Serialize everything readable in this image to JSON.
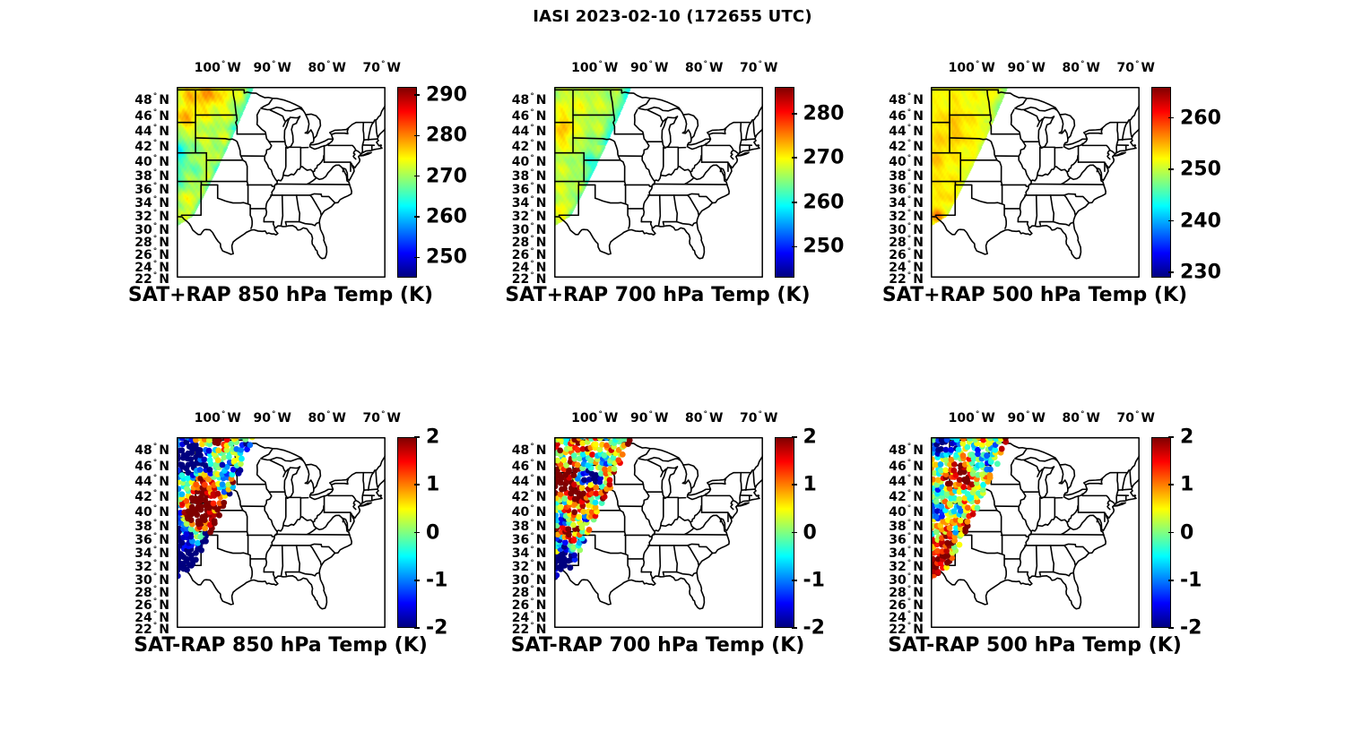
{
  "chart_data": {
    "title": "IASI 2023-02-10 (172655 UTC)",
    "type": "heatmap",
    "subtype": "multi-panel-geographic-swath",
    "instrument": "IASI",
    "colormap": "jet",
    "projection": "mercator",
    "grid": false,
    "lon_range": [
      -107.5,
      -69.3
    ],
    "lat_range": [
      22,
      49.35
    ],
    "lon_ticks": {
      "values": [
        -100,
        -90,
        -80,
        -70
      ],
      "labels": [
        "100° W",
        "90° W",
        "80° W",
        "70° W"
      ]
    },
    "lat_ticks": {
      "values": [
        48,
        46,
        44,
        42,
        40,
        38,
        36,
        34,
        32,
        30,
        28,
        26,
        24,
        22
      ],
      "labels": [
        "48° N",
        "46° N",
        "44° N",
        "42° N",
        "40° N",
        "38° N",
        "36° N",
        "34° N",
        "32° N",
        "30° N",
        "28° N",
        "26° N",
        "24° N",
        "22° N"
      ]
    },
    "swath": {
      "description": "diagonal satellite overpass swath over the U.S. high plains, left edge clipped at map border",
      "bottom_edge": {
        "lat_ref": 30.2,
        "dlat_dlon": 0.53,
        "lon_ref": -107.6
      },
      "right_edge": {
        "lat_ref": 31.9,
        "lon_ref": -104.4,
        "dlon_dlat": 0.634
      }
    },
    "panels": [
      {
        "id": "sat-plus-rap-850",
        "row": 0,
        "col": 0,
        "render": "heatmap",
        "title": "SAT+RAP 850 hPa Temp (K)",
        "pressure_hPa": 850,
        "units": "K",
        "colorbar": {
          "min": 245,
          "max": 292,
          "ticks": [
            250,
            260,
            270,
            280,
            290
          ]
        },
        "field": {
          "base": 271,
          "noise_amp": 3.0,
          "seed": 1,
          "features": [
            [
              48.4,
              -102.3,
              7,
              1.5,
              3.0
            ],
            [
              45.3,
              -106.2,
              5.5,
              1.5,
              1.8
            ],
            [
              41.3,
              -106.9,
              -7.5,
              1.6,
              1.5
            ],
            [
              37.2,
              -107.0,
              -4,
              1.2,
              1.3
            ],
            [
              34.2,
              -105.3,
              1.5,
              1.5,
              2.0
            ],
            [
              38.5,
              -103.9,
              -2,
              1.1,
              1.1
            ]
          ],
          "edge_bands": [
            [
              44,
              49.5,
              1.8,
              -6
            ],
            [
              30,
              44,
              0.9,
              -4.5
            ]
          ]
        }
      },
      {
        "id": "sat-plus-rap-700",
        "row": 0,
        "col": 1,
        "render": "heatmap",
        "title": "SAT+RAP 700 hPa Temp (K)",
        "pressure_hPa": 700,
        "units": "K",
        "colorbar": {
          "min": 243,
          "max": 286,
          "ticks": [
            250,
            260,
            270,
            280
          ]
        },
        "field": {
          "base": 266.5,
          "noise_amp": 2.2,
          "seed": 2,
          "features": [
            [
              44.0,
              -106.0,
              5.5,
              1.7,
              1.8
            ],
            [
              47.6,
              -103.0,
              1.8,
              1.6,
              3.0
            ],
            [
              39.6,
              -100.9,
              -4.5,
              1.5,
              1.2
            ],
            [
              32.4,
              -106.4,
              3,
              1.2,
              1.5
            ],
            [
              36.9,
              -106.8,
              1.5,
              1.5,
              1.3
            ]
          ],
          "edge_bands": [
            [
              42,
              49.5,
              2.2,
              -6
            ],
            [
              30,
              42,
              1.0,
              -3.5
            ]
          ]
        }
      },
      {
        "id": "sat-plus-rap-500",
        "row": 0,
        "col": 2,
        "render": "heatmap",
        "title": "SAT+RAP 500 hPa Temp (K)",
        "pressure_hPa": 500,
        "units": "K",
        "colorbar": {
          "min": 229,
          "max": 266,
          "ticks": [
            230,
            240,
            250,
            260
          ]
        },
        "field": {
          "base": 251.5,
          "noise_amp": 1.3,
          "seed": 3,
          "features": [
            [
              44.2,
              -103.4,
              2.5,
              2.4,
              2.4
            ],
            [
              40.1,
              -106.6,
              2,
              1.8,
              1.4
            ],
            [
              31.9,
              -106.4,
              5,
              0.7,
              0.9
            ],
            [
              35.2,
              -104.6,
              1.5,
              2,
              2
            ]
          ],
          "edge_bands": [
            [
              45,
              49.5,
              2.0,
              -3.5
            ],
            [
              30,
              45,
              0.8,
              -1.5
            ]
          ]
        }
      },
      {
        "id": "sat-minus-rap-850",
        "row": 1,
        "col": 0,
        "render": "scatter",
        "title": "SAT-RAP 850 hPa Temp (K)",
        "pressure_hPa": 850,
        "units": "K",
        "colorbar": {
          "min": -2,
          "max": 2,
          "ticks": [
            -2,
            -1,
            0,
            1,
            2
          ]
        },
        "dot_radius": 3.4,
        "dot_jitter": 0.8,
        "field": {
          "base": -0.9,
          "noise_amp": 1.5,
          "seed": 4,
          "features": [
            [
              41.4,
              -102.9,
              4.5,
              2.3,
              2.1
            ],
            [
              39.2,
              -104.9,
              3.5,
              1.1,
              1.4
            ],
            [
              49.1,
              -100.8,
              3.0,
              0.7,
              2.6
            ],
            [
              46.9,
              -105.2,
              -3.5,
              1.5,
              2.0
            ],
            [
              32.4,
              -106.4,
              -3.5,
              1.9,
              2.3
            ],
            [
              34.7,
              -105.8,
              2.5,
              0.6,
              0.7
            ],
            [
              38.3,
              -107.2,
              -3.0,
              2.0,
              1.0
            ],
            [
              47.8,
              -99.0,
              1.5,
              0.9,
              1.2
            ]
          ],
          "edge_bands": [
            [
              36.9,
              44.6,
              1.3,
              4
            ],
            [
              30,
              36.8,
              1.5,
              -4
            ]
          ]
        }
      },
      {
        "id": "sat-minus-rap-700",
        "row": 1,
        "col": 1,
        "render": "scatter",
        "title": "SAT-RAP 700 hPa Temp (K)",
        "pressure_hPa": 700,
        "units": "K",
        "colorbar": {
          "min": -2,
          "max": 2,
          "ticks": [
            -2,
            -1,
            0,
            1,
            2
          ]
        },
        "dot_radius": 3.4,
        "dot_jitter": 0.9,
        "field": {
          "base": 0.2,
          "noise_amp": 1.7,
          "seed": 5,
          "features": [
            [
              44.8,
              -100.9,
              -2.8,
              0.9,
              1.5
            ],
            [
              43.8,
              -105.4,
              3.0,
              1.5,
              1.7
            ],
            [
              42.0,
              -102.6,
              1.8,
              1.0,
              1.4
            ],
            [
              36.6,
              -104.7,
              2.2,
              0.9,
              1.2
            ],
            [
              33.0,
              -105.5,
              -2.6,
              1.8,
              2.2
            ],
            [
              31.3,
              -106.6,
              -2.2,
              1.3,
              1.8
            ],
            [
              39.5,
              -107.4,
              -1.8,
              1.3,
              0.8
            ],
            [
              48.8,
              -103.0,
              1.2,
              0.8,
              2.4
            ]
          ],
          "edge_bands": [
            [
              41,
              49.5,
              1.1,
              2.0
            ]
          ]
        }
      },
      {
        "id": "sat-minus-rap-500",
        "row": 1,
        "col": 2,
        "render": "scatter",
        "title": "SAT-RAP 500 hPa Temp (K)",
        "pressure_hPa": 500,
        "units": "K",
        "colorbar": {
          "min": -2,
          "max": 2,
          "ticks": [
            -2,
            -1,
            0,
            1,
            2
          ]
        },
        "dot_radius": 3.4,
        "dot_jitter": 0.7,
        "field": {
          "base": 0.15,
          "noise_amp": 1.25,
          "seed": 6,
          "features": [
            [
              48.5,
              -105.0,
              -2.8,
              0.9,
              1.7
            ],
            [
              44.6,
              -101.9,
              2.6,
              1.1,
              1.6
            ],
            [
              46.4,
              -97.9,
              -2.0,
              0.7,
              0.9
            ],
            [
              40.3,
              -106.6,
              -1.6,
              1.2,
              0.9
            ],
            [
              36.0,
              -104.9,
              1.4,
              1.2,
              1.3
            ],
            [
              32.8,
              -104.9,
              1.5,
              1.4,
              1.4
            ],
            [
              31.8,
              -106.3,
              2.0,
              0.8,
              0.9
            ]
          ],
          "edge_bands": [
            [
              36.5,
              42,
              1.1,
              2.2
            ],
            [
              47.5,
              49.5,
              0.8,
              1.8
            ]
          ]
        }
      }
    ]
  }
}
